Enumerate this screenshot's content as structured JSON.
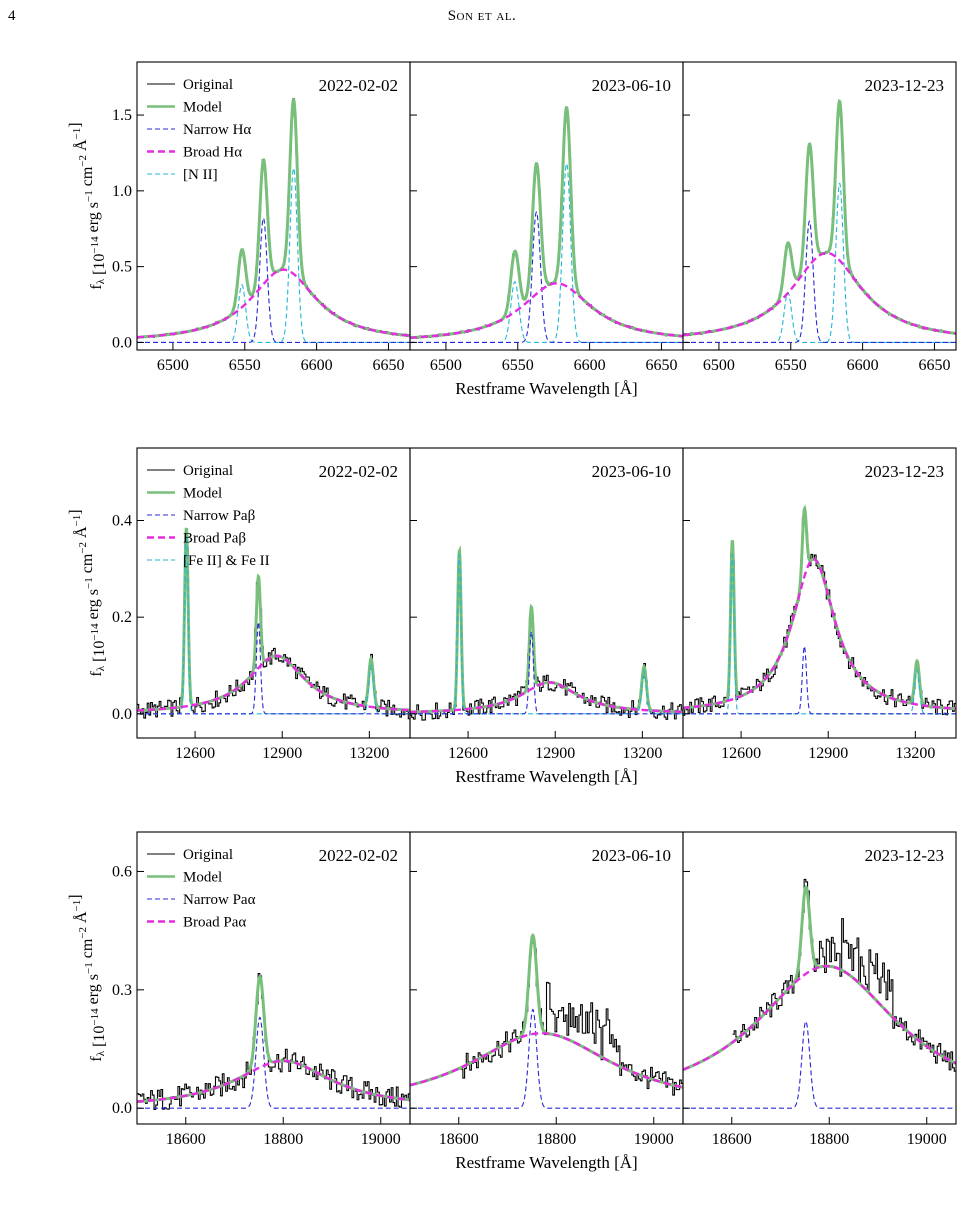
{
  "page": {
    "number": "4",
    "running_head": "Son et al."
  },
  "chart_data": [
    {
      "type": "line",
      "row": 1,
      "ylabel_html": "f<sub>λ</sub> [10<sup>−14</sup> erg s<sup>−1</sup> cm<sup>−2</sup> Å<sup>−1</sup>]",
      "ylabel": "f_λ [10^-14 erg s^-1 cm^-2 Å^-1]",
      "xlabel": "Restframe Wavelength [Å]",
      "xlim": [
        6475,
        6665
      ],
      "ylim": [
        -0.05,
        1.85
      ],
      "yticks": [
        0.0,
        0.5,
        1.0,
        1.5
      ],
      "xticks": [
        6500,
        6550,
        6600,
        6650
      ],
      "legend": [
        "Original",
        "Model",
        "Narrow Hα",
        "Broad Hα",
        "[N II]"
      ],
      "legend_placement": "top-left",
      "panels": [
        {
          "date": "2022-02-02",
          "model": {
            "narrow": [
              {
                "c": 6563,
                "a": 0.82,
                "s": 2.6
              }
            ],
            "other": [
              {
                "c": 6548,
                "a": 0.38,
                "s": 2.6
              },
              {
                "c": 6584,
                "a": 1.15,
                "s": 2.6
              }
            ],
            "broad": {
              "c": 6577,
              "a": 0.48,
              "g": 28
            }
          }
        },
        {
          "date": "2023-06-10",
          "model": {
            "narrow": [
              {
                "c": 6563,
                "a": 0.86,
                "s": 2.8
              }
            ],
            "other": [
              {
                "c": 6548,
                "a": 0.4,
                "s": 2.8
              },
              {
                "c": 6584,
                "a": 1.18,
                "s": 2.8
              }
            ],
            "broad": {
              "c": 6577,
              "a": 0.39,
              "g": 30
            }
          }
        },
        {
          "date": "2023-12-23",
          "model": {
            "narrow": [
              {
                "c": 6563,
                "a": 0.8,
                "s": 2.6
              }
            ],
            "other": [
              {
                "c": 6548,
                "a": 0.33,
                "s": 2.6
              },
              {
                "c": 6584,
                "a": 1.05,
                "s": 2.6
              }
            ],
            "broad": {
              "c": 6575,
              "a": 0.59,
              "g": 30
            }
          }
        }
      ]
    },
    {
      "type": "line",
      "row": 2,
      "ylabel_html": "f<sub>λ</sub> [10<sup>−14</sup> erg s<sup>−1</sup> cm<sup>−2</sup> Å<sup>−1</sup>]",
      "ylabel": "f_λ [10^-14 erg s^-1 cm^-2 Å^-1]",
      "xlabel": "Restframe Wavelength [Å]",
      "xlim": [
        12400,
        13340
      ],
      "ylim": [
        -0.05,
        0.55
      ],
      "yticks": [
        0.0,
        0.2,
        0.4
      ],
      "xticks": [
        12600,
        12900,
        13200
      ],
      "legend": [
        "Original",
        "Model",
        "Narrow Paβ",
        "Broad Paβ",
        "[Fe II] & Fe II"
      ],
      "legend_placement": "top-left",
      "panels": [
        {
          "date": "2022-02-02",
          "model": {
            "narrow": [
              {
                "c": 12818,
                "a": 0.19,
                "s": 7
              }
            ],
            "other": [
              {
                "c": 12570,
                "a": 0.37,
                "s": 6
              },
              {
                "c": 13206,
                "a": 0.1,
                "s": 8
              }
            ],
            "broad": {
              "c": 12880,
              "a": 0.12,
              "g": 120
            }
          }
        },
        {
          "date": "2023-06-10",
          "model": {
            "narrow": [
              {
                "c": 12818,
                "a": 0.17,
                "s": 7
              }
            ],
            "other": [
              {
                "c": 12570,
                "a": 0.33,
                "s": 6
              },
              {
                "c": 13206,
                "a": 0.09,
                "s": 8
              }
            ],
            "broad": {
              "c": 12880,
              "a": 0.065,
              "g": 120
            }
          }
        },
        {
          "date": "2023-12-23",
          "model": {
            "narrow": [
              {
                "c": 12818,
                "a": 0.14,
                "s": 7
              }
            ],
            "other": [
              {
                "c": 12570,
                "a": 0.33,
                "s": 6
              },
              {
                "c": 13206,
                "a": 0.09,
                "s": 8
              }
            ],
            "broad": {
              "c": 12850,
              "a": 0.32,
              "g": 90
            }
          }
        }
      ]
    },
    {
      "type": "line",
      "row": 3,
      "ylabel_html": "f<sub>λ</sub> [10<sup>−14</sup> erg s<sup>−1</sup> cm<sup>−2</sup> Å<sup>−1</sup>]",
      "ylabel": "f_λ [10^-14 erg s^-1 cm^-2 Å^-1]",
      "xlabel": "Restframe Wavelength [Å]",
      "xlim": [
        18500,
        19060
      ],
      "ylim": [
        -0.04,
        0.7
      ],
      "yticks": [
        0.0,
        0.3,
        0.6
      ],
      "xticks": [
        18600,
        18800,
        19000
      ],
      "legend": [
        "Original",
        "Model",
        "Narrow Paα",
        "Broad Paα"
      ],
      "legend_placement": "top-left",
      "panels": [
        {
          "date": "2022-02-02",
          "model": {
            "narrow": [
              {
                "c": 18752,
                "a": 0.23,
                "s": 8
              }
            ],
            "other": [],
            "broad": {
              "c": 18800,
              "a": 0.12,
              "g": 120
            }
          }
        },
        {
          "date": "2023-06-10",
          "model": {
            "narrow": [
              {
                "c": 18752,
                "a": 0.25,
                "s": 8
              }
            ],
            "other": [],
            "broad": {
              "c": 18770,
              "a": 0.19,
              "g": 180
            }
          }
        },
        {
          "date": "2023-12-23",
          "model": {
            "narrow": [
              {
                "c": 18752,
                "a": 0.22,
                "s": 8
              }
            ],
            "other": [],
            "broad": {
              "c": 18795,
              "a": 0.36,
              "g": 180
            }
          }
        }
      ]
    }
  ],
  "colors": {
    "original": "#000000",
    "model": "#77bf7a",
    "narrow": "#2828d8",
    "broad": "#e62ce0",
    "other": "#22b8d6"
  }
}
